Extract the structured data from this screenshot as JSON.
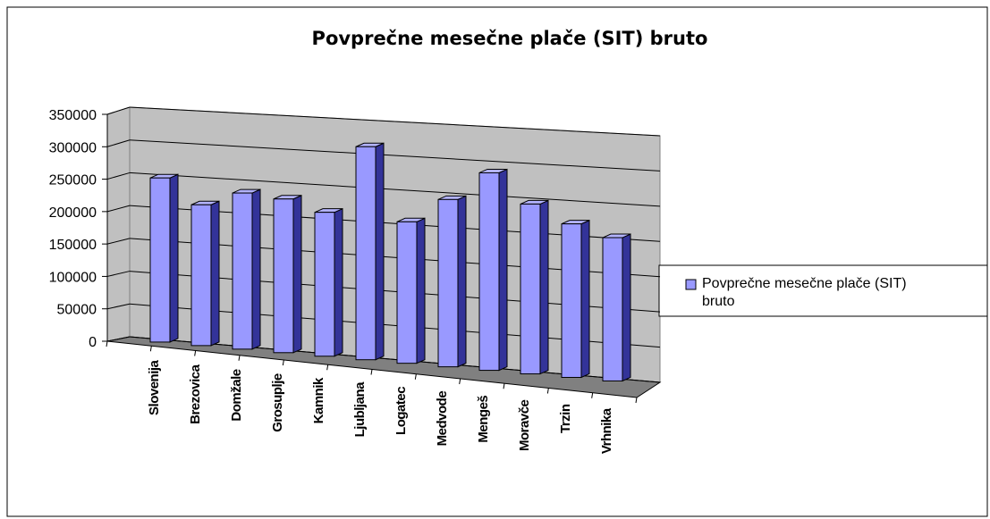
{
  "chart_data": {
    "type": "bar3d",
    "title": "Povprečne mesečne plače (SIT) bruto",
    "categories": [
      "Slovenija",
      "Brezovica",
      "Domžale",
      "Grosuplje",
      "Kamnik",
      "Ljubljana",
      "Logatec",
      "Medvode",
      "Mengeš",
      "Moravče",
      "Trzin",
      "Vrhnika"
    ],
    "series": [
      {
        "name": "Povprečne mesečne plače (SIT) bruto",
        "color": "#9999ff",
        "values": [
          252000,
          215000,
          237000,
          232000,
          216000,
          318000,
          210000,
          247000,
          290000,
          248000,
          223000,
          207000
        ]
      }
    ],
    "ylim": [
      0,
      350000
    ],
    "yticks": [
      0,
      50000,
      100000,
      150000,
      200000,
      250000,
      300000,
      350000
    ],
    "grid": true,
    "legend": "right"
  }
}
